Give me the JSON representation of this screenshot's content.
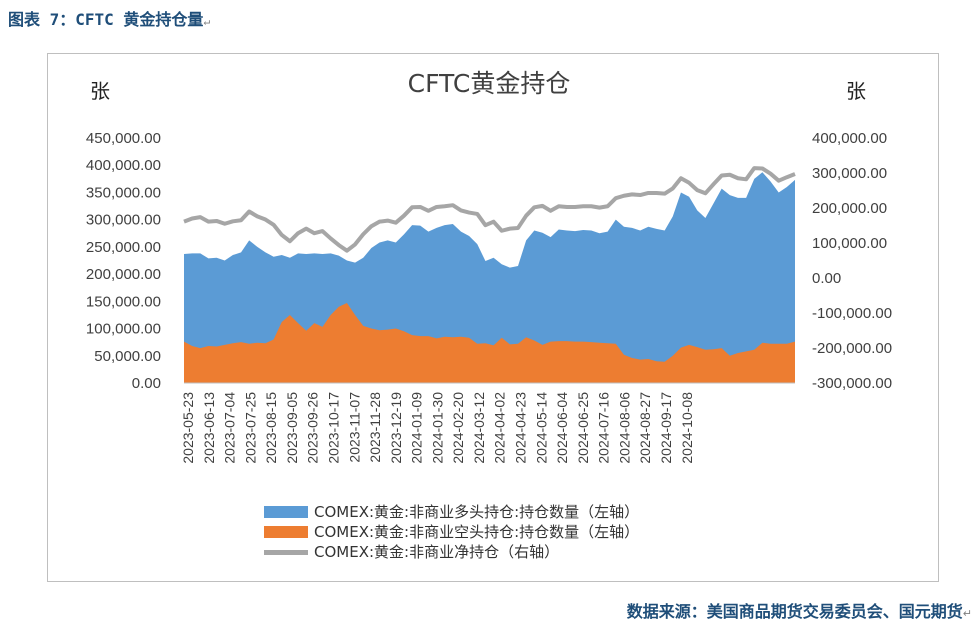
{
  "caption": "图表 7：CFTC 黄金持仓量",
  "source": "数据来源：美国商品期货交易委员会、国元期货",
  "chart_data": {
    "type": "area",
    "title": "CFTC黄金持仓",
    "y_left_unit": "张",
    "y_right_unit": "张",
    "y_left_ticks": [
      "450,000.00",
      "400,000.00",
      "350,000.00",
      "300,000.00",
      "250,000.00",
      "200,000.00",
      "150,000.00",
      "100,000.00",
      "50,000.00",
      "0.00"
    ],
    "y_right_ticks": [
      "400,000.00",
      "300,000.00",
      "200,000.00",
      "100,000.00",
      "0.00",
      "-100,000.00",
      "-200,000.00",
      "-300,000.00"
    ],
    "y_left_lim": [
      0,
      450000
    ],
    "y_right_lim": [
      -300000,
      400000
    ],
    "x_tick_labels": [
      "2023-05-23",
      "2023-06-13",
      "2023-07-04",
      "2023-07-25",
      "2023-08-15",
      "2023-09-05",
      "2023-09-26",
      "2023-10-17",
      "2023-11-07",
      "2023-11-28",
      "2023-12-19",
      "2024-01-09",
      "2024-01-30",
      "2024-02-20",
      "2024-03-12",
      "2024-04-02",
      "2024-04-23",
      "2024-05-14",
      "2024-06-04",
      "2024-06-25",
      "2024-07-16",
      "2024-08-06",
      "2024-08-27",
      "2024-09-17",
      "2024-10-08"
    ],
    "series": [
      {
        "name": "COMEX:黄金:非商业多头持仓:持仓数量（左轴）",
        "color": "#5b9bd5",
        "axis": "left",
        "values": [
          237000,
          238000,
          238000,
          229000,
          230000,
          225000,
          235000,
          240000,
          262000,
          250000,
          240000,
          232000,
          235000,
          230000,
          238000,
          237000,
          238000,
          237000,
          238000,
          234000,
          225000,
          221000,
          230000,
          248000,
          258000,
          262000,
          258000,
          273000,
          290000,
          289000,
          278000,
          285000,
          290000,
          292000,
          278000,
          270000,
          255000,
          224000,
          230000,
          218000,
          212000,
          215000,
          262000,
          280000,
          276000,
          268000,
          282000,
          280000,
          279000,
          281000,
          280000,
          275000,
          278000,
          300000,
          287000,
          285000,
          280000,
          287000,
          283000,
          280000,
          306000,
          350000,
          342000,
          317000,
          303000,
          330000,
          357000,
          345000,
          340000,
          340000,
          375000,
          387000,
          370000,
          350000,
          360000,
          373000
        ]
      },
      {
        "name": "COMEX:黄金:非商业空头持仓:持仓数量（左轴）",
        "color": "#ed7d31",
        "axis": "left",
        "values": [
          76000,
          68000,
          64000,
          68000,
          67000,
          70000,
          73000,
          75000,
          72000,
          74000,
          73000,
          80000,
          112000,
          125000,
          110000,
          96000,
          110000,
          103000,
          125000,
          140000,
          147000,
          125000,
          105000,
          100000,
          97000,
          98000,
          100000,
          95000,
          88000,
          86000,
          86000,
          82000,
          85000,
          84000,
          85000,
          83000,
          72000,
          73000,
          69000,
          83000,
          71000,
          72000,
          84000,
          78000,
          70000,
          76000,
          77000,
          77000,
          76000,
          76000,
          75000,
          74000,
          73000,
          72000,
          52000,
          46000,
          43000,
          44000,
          40000,
          39000,
          50000,
          65000,
          70000,
          66000,
          61000,
          62000,
          64000,
          50000,
          55000,
          58000,
          61000,
          74000,
          72000,
          72000,
          72000,
          76000
        ]
      },
      {
        "name": "COMEX:黄金:非商业净持仓（右轴）",
        "color": "#a6a6a6",
        "axis": "right",
        "values": [
          161000,
          170000,
          174000,
          161000,
          163000,
          155000,
          162000,
          165000,
          190000,
          176000,
          167000,
          152000,
          123000,
          105000,
          128000,
          141000,
          128000,
          134000,
          113000,
          94000,
          78000,
          96000,
          125000,
          148000,
          161000,
          164000,
          158000,
          178000,
          202000,
          203000,
          192000,
          203000,
          205000,
          208000,
          193000,
          187000,
          183000,
          151000,
          161000,
          135000,
          141000,
          143000,
          178000,
          202000,
          206000,
          192000,
          205000,
          203000,
          203000,
          205000,
          205000,
          201000,
          205000,
          228000,
          235000,
          239000,
          237000,
          243000,
          243000,
          241000,
          256000,
          285000,
          272000,
          251000,
          242000,
          268000,
          293000,
          295000,
          285000,
          282000,
          314000,
          313000,
          298000,
          278000,
          288000,
          297000
        ]
      }
    ],
    "legend_position": "bottom",
    "grid": false
  }
}
